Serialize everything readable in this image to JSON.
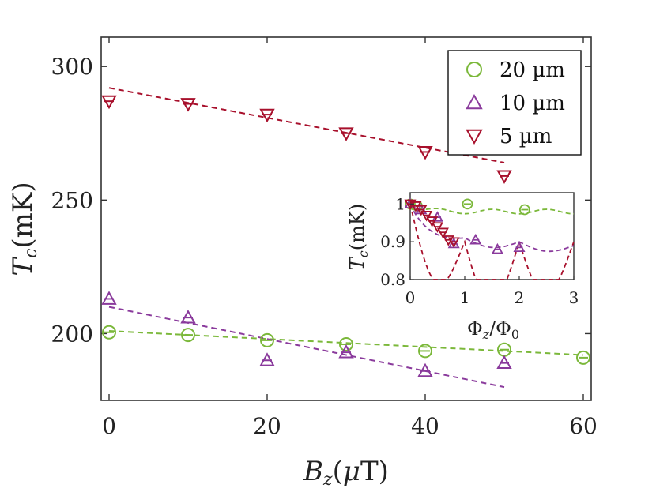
{
  "chart_data": {
    "main": {
      "type": "scatter",
      "xlabel": "B_z(µT)",
      "ylabel": "T_c(mK)",
      "xlim": [
        -1,
        61
      ],
      "ylim": [
        175,
        311
      ],
      "xticks": [
        "0",
        "20",
        "40",
        "60"
      ],
      "xtick_values": [
        0,
        20,
        40,
        60
      ],
      "yticks": [
        "200",
        "250",
        "300"
      ],
      "ytick_values": [
        200,
        250,
        300
      ],
      "legend_position": "top-right",
      "series": [
        {
          "name": "20 µm",
          "color": "#7bb83a",
          "marker": "circle",
          "x": [
            0,
            10,
            20,
            30,
            40,
            50,
            60
          ],
          "y": [
            200.5,
            199.5,
            197.5,
            196,
            193.5,
            194,
            191
          ],
          "fit": {
            "x": [
              0,
              60
            ],
            "y": [
              201,
              192
            ]
          }
        },
        {
          "name": "10 µm",
          "color": "#8a3a9c",
          "marker": "triangle-up",
          "x": [
            0,
            10,
            20,
            30,
            40,
            50
          ],
          "y": [
            213,
            206,
            190,
            193,
            186,
            189
          ],
          "fit": {
            "x": [
              0,
              50
            ],
            "y": [
              210,
              180
            ]
          }
        },
        {
          "name": "5 µm",
          "color": "#a8102c",
          "marker": "triangle-down",
          "x": [
            0,
            10,
            20,
            30,
            40,
            50
          ],
          "y": [
            287,
            286,
            282,
            275,
            268,
            259
          ],
          "fit": {
            "x": [
              0,
              50
            ],
            "y": [
              292,
              264
            ]
          }
        }
      ]
    },
    "inset": {
      "type": "scatter",
      "xlabel": "Φ_z/Φ_0",
      "ylabel": "T_c(mK)",
      "xlim": [
        0,
        3
      ],
      "ylim": [
        0.8,
        1.03
      ],
      "xticks": [
        "0",
        "1",
        "2",
        "3"
      ],
      "xtick_values": [
        0,
        1,
        2,
        3
      ],
      "yticks": [
        "0.8",
        "0.9",
        "1"
      ],
      "ytick_values": [
        0.8,
        0.9,
        1.0
      ],
      "series": [
        {
          "name": "20 µm",
          "color": "#7bb83a",
          "marker": "circle",
          "x": [
            0,
            0.13,
            1.05,
            2.1
          ],
          "y": [
            1.0,
            0.995,
            1.0,
            0.985
          ]
        },
        {
          "name": "10 µm",
          "color": "#8a3a9c",
          "marker": "triangle-up",
          "x": [
            0.0,
            0.2,
            0.5,
            0.8,
            1.2,
            1.6,
            2.0
          ],
          "y": [
            1.0,
            0.985,
            0.965,
            0.895,
            0.905,
            0.88,
            0.885
          ]
        },
        {
          "name": "5 µm",
          "color": "#a8102c",
          "marker": "triangle-down",
          "x": [
            0.0,
            0.1,
            0.2,
            0.3,
            0.4,
            0.5,
            0.6,
            0.7,
            0.8
          ],
          "y": [
            1.0,
            0.995,
            0.985,
            0.97,
            0.955,
            0.94,
            0.925,
            0.905,
            0.9
          ]
        }
      ]
    }
  }
}
